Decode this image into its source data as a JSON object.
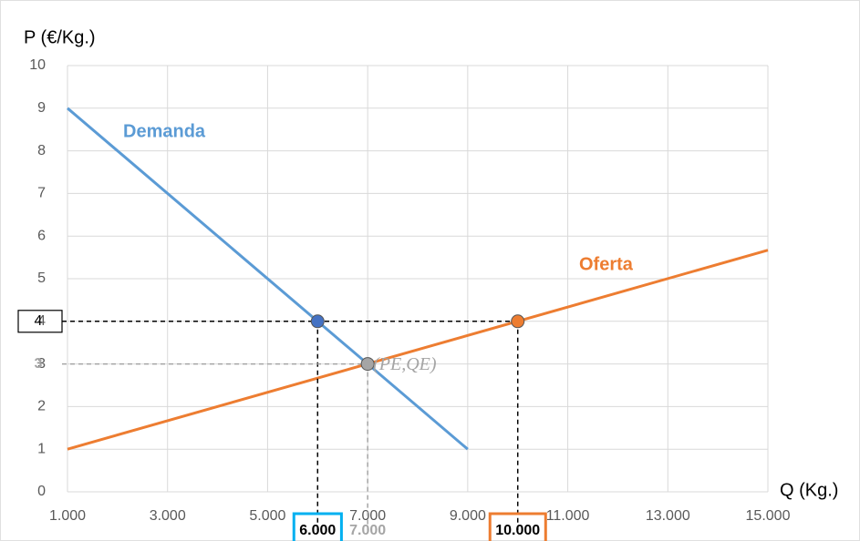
{
  "chart_data": {
    "type": "line",
    "y_label": "P (€/Kg.)",
    "x_label": "Q (Kg.)",
    "xlim": [
      1000,
      15000
    ],
    "ylim": [
      0,
      10
    ],
    "xticks": [
      {
        "value": 1000,
        "label": "1.000"
      },
      {
        "value": 3000,
        "label": "3.000"
      },
      {
        "value": 5000,
        "label": "5.000"
      },
      {
        "value": 7000,
        "label": "7.000"
      },
      {
        "value": 9000,
        "label": "9.000"
      },
      {
        "value": 11000,
        "label": "11.000"
      },
      {
        "value": 13000,
        "label": "13.000"
      },
      {
        "value": 15000,
        "label": "15.000"
      }
    ],
    "yticks": [
      0,
      1,
      2,
      3,
      4,
      5,
      6,
      7,
      8,
      9,
      10
    ],
    "grid": true,
    "series": [
      {
        "name": "Demanda",
        "color": "#5b9bd5",
        "x": [
          1000,
          9000
        ],
        "values": [
          9,
          1
        ]
      },
      {
        "name": "Oferta",
        "color": "#ed7d31",
        "x": [
          1000,
          15000
        ],
        "values": [
          1,
          5.67
        ]
      }
    ],
    "points": [
      {
        "x": 6000,
        "y": 4,
        "color": "#4472c4",
        "guide_color": "#000000",
        "x_label": "6.000",
        "x_box": "#00b0f0",
        "y_label": "4",
        "y_box": "#000000"
      },
      {
        "x": 10000,
        "y": 4,
        "color": "#ed7d31",
        "guide_color": "#000000",
        "x_label": "10.000",
        "x_box": "#ed7d31"
      },
      {
        "x": 7000,
        "y": 3,
        "color": "#a5a5a5",
        "guide_color": "#a5a5a5",
        "x_label": "7.000",
        "y_label": "3",
        "label": "(PE,QE)"
      }
    ]
  }
}
